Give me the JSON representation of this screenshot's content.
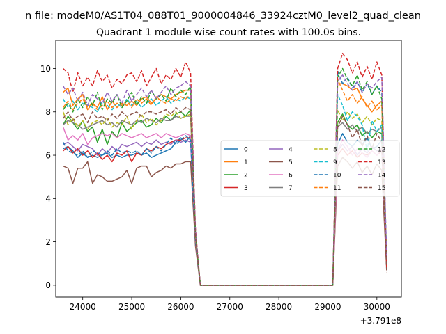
{
  "suptitle": "n file: modeM0/AS1T04_088T01_9000004846_33924cztM0_level2_quad_clean",
  "chart_data": {
    "type": "line",
    "title": "Quadrant 1 module wise count rates with 100.0s bins.",
    "xlabel": "",
    "ylabel": "",
    "offset_text": "+3.791e8",
    "xlim": [
      23450,
      30500
    ],
    "ylim": [
      -0.55,
      11.3
    ],
    "xticks": [
      24000,
      25000,
      26000,
      27000,
      28000,
      29000,
      30000
    ],
    "xtick_labels": [
      "24000",
      "25000",
      "26000",
      "27000",
      "28000",
      "29000",
      "30000"
    ],
    "yticks": [
      0,
      2,
      4,
      6,
      8,
      10
    ],
    "ytick_labels": [
      "0",
      "2",
      "4",
      "6",
      "8",
      "10"
    ],
    "grid": false,
    "legend_placement": "center-right",
    "legend_columns": 4,
    "x": [
      23600,
      23700,
      23800,
      23900,
      24000,
      24100,
      24200,
      24300,
      24400,
      24500,
      24600,
      24700,
      24800,
      24900,
      25000,
      25100,
      25200,
      25300,
      25400,
      25500,
      25600,
      25700,
      25800,
      25900,
      26000,
      26100,
      26200,
      26300,
      26400,
      26500,
      26600,
      26700,
      26800,
      26900,
      27000,
      27100,
      27200,
      27300,
      27400,
      27500,
      27600,
      27700,
      27800,
      27900,
      28000,
      28100,
      28200,
      28300,
      28400,
      28500,
      28600,
      28700,
      28800,
      28900,
      29000,
      29100,
      29200,
      29300,
      29400,
      29500,
      29600,
      29700,
      29800,
      29900,
      30000,
      30100,
      30200
    ],
    "series": [
      {
        "name": "0",
        "color": "#1f77b4",
        "dashed": false,
        "values": [
          6.3,
          6.4,
          6.2,
          5.9,
          6.1,
          5.9,
          6.0,
          5.9,
          6.0,
          6.1,
          5.9,
          6.0,
          5.9,
          6.0,
          6.0,
          6.1,
          6.0,
          6.1,
          5.9,
          6.0,
          6.1,
          6.2,
          6.3,
          6.6,
          6.8,
          6.6,
          6.9,
          2.1,
          0,
          0,
          0,
          0,
          0,
          0,
          0,
          0,
          0,
          0,
          0,
          0,
          0,
          0,
          0,
          0,
          0,
          0,
          0,
          0,
          0,
          0,
          0,
          0,
          0,
          0,
          0,
          0,
          6.5,
          7.0,
          6.6,
          6.4,
          6.7,
          6.5,
          6.8,
          6.3,
          6.4,
          6.7,
          1.2
        ]
      },
      {
        "name": "1",
        "color": "#ff7f0e",
        "dashed": false,
        "values": [
          8.9,
          9.1,
          8.3,
          8.6,
          8.8,
          8.1,
          8.4,
          8.2,
          8.7,
          8.1,
          8.5,
          8.2,
          8.4,
          8.3,
          8.5,
          8.3,
          8.6,
          8.7,
          8.4,
          8.6,
          8.8,
          8.7,
          8.6,
          8.8,
          8.9,
          9.0,
          9.0,
          2.3,
          0,
          0,
          0,
          0,
          0,
          0,
          0,
          0,
          0,
          0,
          0,
          0,
          0,
          0,
          0,
          0,
          0,
          0,
          0,
          0,
          0,
          0,
          0,
          0,
          0,
          0,
          0,
          0,
          9.3,
          9.3,
          9.2,
          9.0,
          9.1,
          8.6,
          8.3,
          8.0,
          8.3,
          8.5,
          1.0
        ]
      },
      {
        "name": "2",
        "color": "#2ca02c",
        "dashed": false,
        "values": [
          7.4,
          7.8,
          7.5,
          7.2,
          7.6,
          7.1,
          7.3,
          6.6,
          7.2,
          6.5,
          7.1,
          6.8,
          7.5,
          7.1,
          7.3,
          7.5,
          7.6,
          7.3,
          7.4,
          7.7,
          7.5,
          7.8,
          7.6,
          7.9,
          8.0,
          7.8,
          8.1,
          2.2,
          0,
          0,
          0,
          0,
          0,
          0,
          0,
          0,
          0,
          0,
          0,
          0,
          0,
          0,
          0,
          0,
          0,
          0,
          0,
          0,
          0,
          0,
          0,
          0,
          0,
          0,
          0,
          0,
          7.5,
          7.9,
          7.4,
          7.2,
          7.4,
          6.9,
          7.1,
          6.8,
          7.1,
          7.0,
          0.9
        ]
      },
      {
        "name": "3",
        "color": "#d62728",
        "dashed": false,
        "values": [
          6.2,
          6.4,
          6.1,
          6.3,
          6.0,
          6.2,
          5.9,
          6.1,
          5.8,
          6.0,
          5.7,
          6.1,
          6.0,
          6.2,
          5.7,
          6.1,
          6.0,
          6.3,
          6.2,
          6.4,
          6.3,
          6.5,
          6.6,
          6.7,
          6.7,
          6.8,
          6.8,
          2.0,
          0,
          0,
          0,
          0,
          0,
          0,
          0,
          0,
          0,
          0,
          0,
          0,
          0,
          0,
          0,
          0,
          0,
          0,
          0,
          0,
          0,
          0,
          0,
          0,
          0,
          0,
          0,
          0,
          6.0,
          6.3,
          6.0,
          6.2,
          5.9,
          6.1,
          6.0,
          6.2,
          6.0,
          6.2,
          0.8
        ]
      },
      {
        "name": "4",
        "color": "#9467bd",
        "dashed": false,
        "values": [
          6.5,
          6.6,
          6.4,
          6.2,
          6.5,
          6.4,
          6.3,
          6.0,
          6.3,
          6.1,
          6.4,
          6.2,
          6.5,
          6.4,
          6.5,
          6.6,
          6.4,
          6.6,
          6.5,
          6.7,
          6.5,
          6.6,
          6.5,
          6.7,
          6.6,
          6.7,
          6.6,
          2.0,
          0,
          0,
          0,
          0,
          0,
          0,
          0,
          0,
          0,
          0,
          0,
          0,
          0,
          0,
          0,
          0,
          0,
          0,
          0,
          0,
          0,
          0,
          0,
          0,
          0,
          0,
          0,
          0,
          6.2,
          6.5,
          6.2,
          6.4,
          6.0,
          6.3,
          6.1,
          6.4,
          6.2,
          6.3,
          0.8
        ]
      },
      {
        "name": "5",
        "color": "#8c564b",
        "dashed": false,
        "values": [
          5.5,
          5.4,
          4.7,
          5.4,
          5.4,
          5.7,
          4.7,
          5.1,
          5.0,
          4.8,
          4.8,
          4.9,
          5.0,
          5.3,
          4.7,
          5.4,
          5.5,
          5.5,
          5.0,
          5.2,
          5.3,
          5.5,
          5.4,
          5.6,
          5.6,
          5.7,
          5.7,
          1.8,
          0,
          0,
          0,
          0,
          0,
          0,
          0,
          0,
          0,
          0,
          0,
          0,
          0,
          0,
          0,
          0,
          0,
          0,
          0,
          0,
          0,
          0,
          0,
          0,
          0,
          0,
          0,
          0,
          5.5,
          5.9,
          5.7,
          5.4,
          5.7,
          5.2,
          5.5,
          5.1,
          5.6,
          5.3,
          0.7
        ]
      },
      {
        "name": "6",
        "color": "#e377c2",
        "dashed": false,
        "values": [
          7.3,
          6.7,
          6.9,
          6.7,
          7.0,
          6.5,
          6.8,
          6.9,
          7.0,
          6.9,
          7.0,
          6.8,
          7.0,
          6.9,
          6.8,
          6.9,
          7.0,
          6.8,
          6.9,
          7.0,
          6.8,
          7.0,
          6.9,
          6.8,
          6.9,
          7.0,
          6.9,
          2.1,
          0,
          0,
          0,
          0,
          0,
          0,
          0,
          0,
          0,
          0,
          0,
          0,
          0,
          0,
          0,
          0,
          0,
          0,
          0,
          0,
          0,
          0,
          0,
          0,
          0,
          0,
          0,
          0,
          6.2,
          6.7,
          6.4,
          6.0,
          6.3,
          6.1,
          5.9,
          6.2,
          6.0,
          6.3,
          0.9
        ]
      },
      {
        "name": "7",
        "color": "#7f7f7f",
        "dashed": false,
        "values": [
          7.4,
          7.6,
          7.5,
          7.4,
          7.2,
          7.3,
          7.4,
          7.5,
          7.6,
          7.4,
          7.5,
          7.3,
          7.6,
          7.5,
          7.4,
          7.6,
          7.5,
          7.7,
          7.6,
          7.5,
          7.7,
          7.6,
          7.6,
          7.8,
          7.7,
          7.8,
          7.8,
          2.2,
          0,
          0,
          0,
          0,
          0,
          0,
          0,
          0,
          0,
          0,
          0,
          0,
          0,
          0,
          0,
          0,
          0,
          0,
          0,
          0,
          0,
          0,
          0,
          0,
          0,
          0,
          0,
          0,
          7.3,
          7.5,
          7.2,
          7.4,
          7.1,
          7.3,
          7.0,
          7.2,
          7.1,
          7.3,
          0.9
        ]
      },
      {
        "name": "8",
        "color": "#bcbd22",
        "dashed": true,
        "values": [
          8.0,
          7.4,
          7.7,
          7.3,
          7.6,
          7.2,
          7.5,
          7.6,
          7.4,
          7.7,
          7.3,
          7.5,
          7.4,
          7.8,
          7.2,
          7.6,
          7.9,
          7.5,
          7.7,
          7.4,
          7.6,
          7.9,
          7.8,
          8.0,
          7.7,
          7.8,
          7.9,
          2.3,
          0,
          0,
          0,
          0,
          0,
          0,
          0,
          0,
          0,
          0,
          0,
          0,
          0,
          0,
          0,
          0,
          0,
          0,
          0,
          0,
          0,
          0,
          0,
          0,
          0,
          0,
          0,
          0,
          8.1,
          7.6,
          8.0,
          7.7,
          7.9,
          7.5,
          7.8,
          7.4,
          7.7,
          7.6,
          0.9
        ]
      },
      {
        "name": "9",
        "color": "#17becf",
        "dashed": true,
        "values": [
          8.6,
          8.2,
          8.5,
          8.1,
          8.4,
          8.3,
          8.2,
          8.0,
          8.5,
          8.3,
          8.1,
          8.4,
          8.2,
          8.6,
          8.3,
          8.5,
          8.2,
          8.4,
          8.6,
          8.3,
          8.5,
          8.7,
          8.4,
          8.6,
          8.5,
          8.7,
          8.6,
          2.4,
          0,
          0,
          0,
          0,
          0,
          0,
          0,
          0,
          0,
          0,
          0,
          0,
          0,
          0,
          0,
          0,
          0,
          0,
          0,
          0,
          0,
          0,
          0,
          0,
          0,
          0,
          0,
          0,
          8.8,
          8.3,
          7.6,
          8.0,
          7.8,
          7.4,
          6.2,
          7.6,
          7.1,
          7.4,
          1.0
        ]
      },
      {
        "name": "10",
        "color": "#1f77b4",
        "dashed": true,
        "values": [
          6.6,
          6.2,
          6.1,
          6.0,
          6.2,
          5.9,
          6.2,
          6.1,
          6.0,
          6.2,
          6.0,
          6.3,
          6.1,
          6.2,
          6.1,
          6.2,
          6.0,
          6.3,
          6.1,
          6.4,
          6.2,
          6.5,
          6.8,
          6.5,
          6.7,
          6.9,
          6.7,
          2.1,
          0,
          0,
          0,
          0,
          0,
          0,
          0,
          0,
          0,
          0,
          0,
          0,
          0,
          0,
          0,
          0,
          0,
          0,
          0,
          0,
          0,
          0,
          0,
          0,
          0,
          0,
          0,
          0,
          9.9,
          9.3,
          9.6,
          9.1,
          9.4,
          8.9,
          9.3,
          8.8,
          9.2,
          8.9,
          1.3
        ]
      },
      {
        "name": "11",
        "color": "#ff7f0e",
        "dashed": true,
        "values": [
          8.2,
          8.5,
          8.1,
          8.4,
          8.6,
          8.2,
          8.4,
          8.1,
          8.3,
          8.5,
          8.2,
          8.4,
          8.3,
          8.5,
          8.2,
          8.6,
          8.4,
          8.6,
          8.3,
          8.7,
          8.5,
          8.4,
          8.6,
          8.5,
          8.7,
          8.6,
          8.8,
          2.3,
          0,
          0,
          0,
          0,
          0,
          0,
          0,
          0,
          0,
          0,
          0,
          0,
          0,
          0,
          0,
          0,
          0,
          0,
          0,
          0,
          0,
          0,
          0,
          0,
          0,
          0,
          0,
          0,
          9.5,
          9.0,
          8.5,
          8.8,
          8.4,
          8.7,
          8.2,
          8.5,
          8.1,
          8.3,
          1.0
        ]
      },
      {
        "name": "12",
        "color": "#2ca02c",
        "dashed": true,
        "values": [
          8.1,
          8.4,
          8.0,
          8.6,
          8.2,
          8.7,
          8.3,
          8.9,
          8.1,
          8.6,
          8.4,
          8.8,
          8.2,
          8.5,
          8.9,
          8.3,
          8.7,
          8.4,
          9.0,
          8.6,
          8.8,
          8.5,
          9.1,
          8.7,
          9.0,
          8.8,
          9.2,
          2.4,
          0,
          0,
          0,
          0,
          0,
          0,
          0,
          0,
          0,
          0,
          0,
          0,
          0,
          0,
          0,
          0,
          0,
          0,
          0,
          0,
          0,
          0,
          0,
          0,
          0,
          0,
          0,
          0,
          9.6,
          10.0,
          9.5,
          9.2,
          9.7,
          9.0,
          9.4,
          8.8,
          9.2,
          8.6,
          1.1
        ]
      },
      {
        "name": "13",
        "color": "#d62728",
        "dashed": true,
        "values": [
          10.0,
          9.8,
          8.9,
          9.8,
          9.2,
          9.6,
          9.2,
          9.9,
          9.4,
          9.7,
          9.1,
          9.5,
          9.3,
          9.7,
          9.8,
          9.4,
          9.9,
          9.2,
          9.6,
          10.0,
          9.3,
          9.7,
          9.5,
          10.0,
          9.6,
          10.3,
          9.8,
          2.6,
          0,
          0,
          0,
          0,
          0,
          0,
          0,
          0,
          0,
          0,
          0,
          0,
          0,
          0,
          0,
          0,
          0,
          0,
          0,
          0,
          0,
          0,
          0,
          0,
          0,
          0,
          0,
          0,
          10.0,
          10.7,
          10.4,
          9.8,
          10.3,
          9.6,
          10.1,
          9.5,
          10.3,
          9.7,
          0.7
        ]
      },
      {
        "name": "14",
        "color": "#9467bd",
        "dashed": true,
        "values": [
          9.2,
          8.8,
          9.1,
          8.5,
          8.9,
          8.3,
          8.8,
          8.6,
          8.4,
          8.9,
          8.5,
          8.8,
          8.4,
          9.0,
          8.5,
          8.8,
          9.1,
          8.7,
          9.0,
          8.6,
          8.9,
          9.2,
          8.8,
          9.1,
          9.2,
          9.4,
          9.2,
          2.5,
          0,
          0,
          0,
          0,
          0,
          0,
          0,
          0,
          0,
          0,
          0,
          0,
          0,
          0,
          0,
          0,
          0,
          0,
          0,
          0,
          0,
          0,
          0,
          0,
          0,
          0,
          0,
          0,
          9.4,
          9.7,
          9.3,
          9.0,
          9.4,
          8.9,
          9.3,
          9.1,
          9.4,
          9.6,
          1.2
        ]
      },
      {
        "name": "15",
        "color": "#8c564b",
        "dashed": true,
        "values": [
          7.7,
          8.0,
          7.6,
          7.8,
          7.9,
          7.5,
          8.0,
          7.7,
          7.8,
          7.6,
          7.9,
          7.7,
          8.0,
          7.8,
          7.9,
          8.0,
          7.8,
          8.0,
          8.0,
          7.9,
          8.0,
          8.1,
          7.9,
          8.2,
          8.0,
          8.2,
          8.1,
          2.3,
          0,
          0,
          0,
          0,
          0,
          0,
          0,
          0,
          0,
          0,
          0,
          0,
          0,
          0,
          0,
          0,
          0,
          0,
          0,
          0,
          0,
          0,
          0,
          0,
          0,
          0,
          0,
          0,
          7.3,
          7.8,
          7.4,
          6.8,
          7.2,
          6.4,
          6.9,
          6.3,
          7.0,
          6.6,
          0.6
        ]
      }
    ]
  }
}
